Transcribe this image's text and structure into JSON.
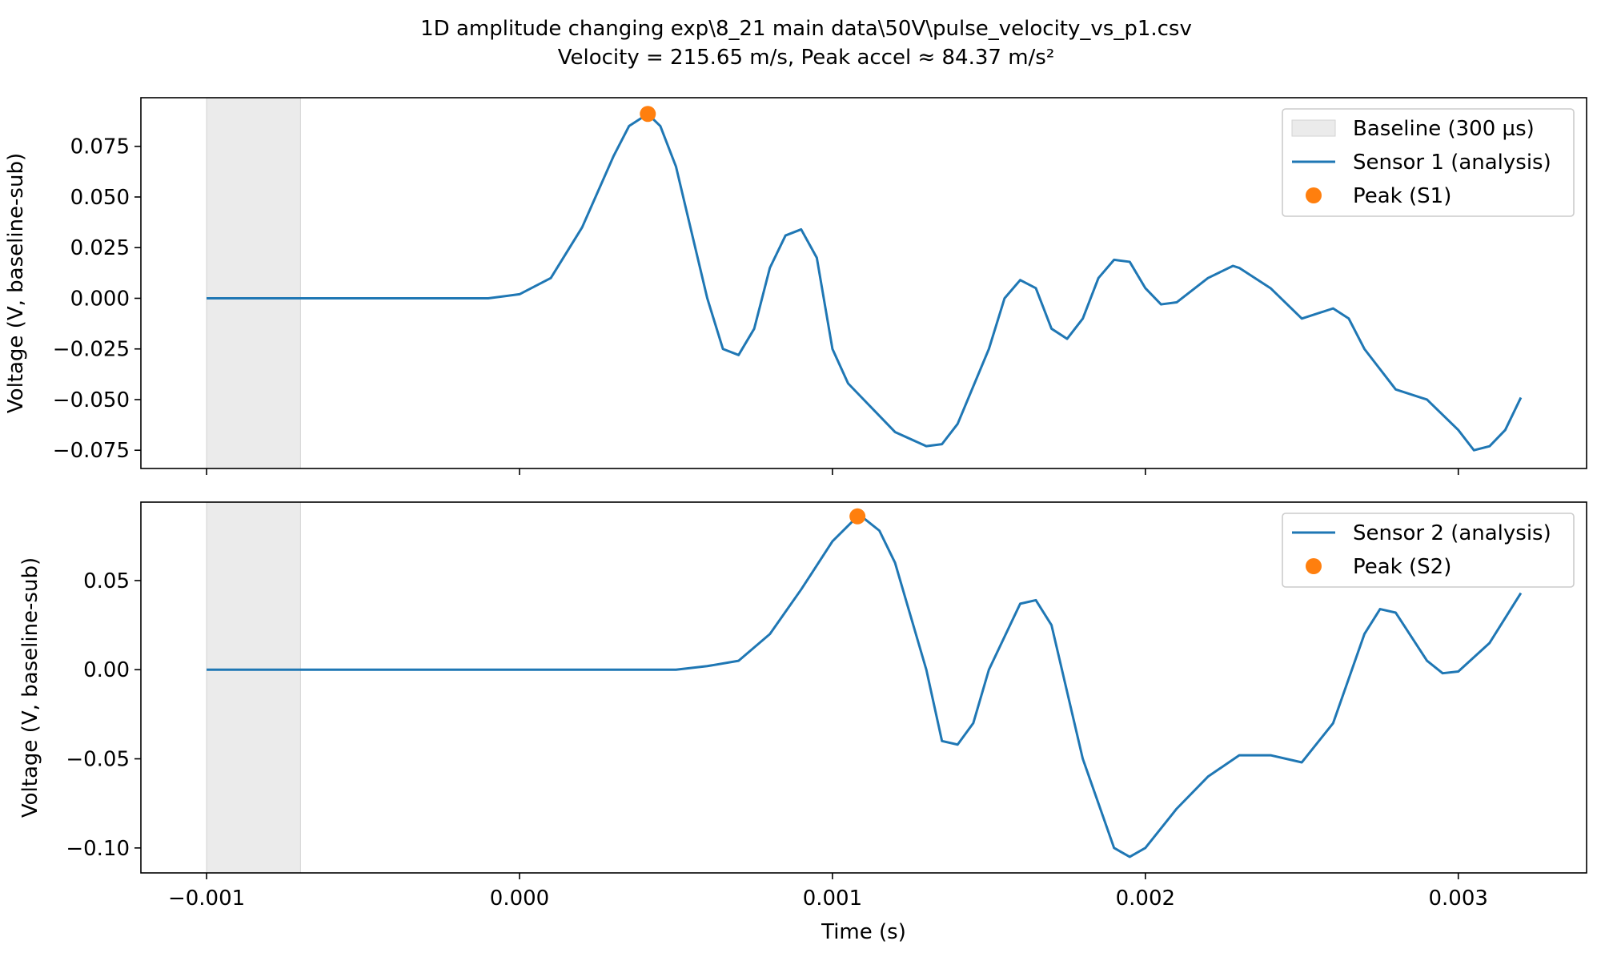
{
  "title_line1": "1D amplitude changing exp\\8_21 main data\\50V\\pulse_velocity_vs_p1.csv",
  "title_line2": "Velocity = 215.65 m/s, Peak accel ≈ 84.37 m/s²",
  "colors": {
    "series": "#1f77b4",
    "peak": "#ff7f0e",
    "baseline": "#d3d3d3"
  },
  "chart_data": [
    {
      "type": "line",
      "ylabel": "Voltage (V, baseline-sub)",
      "xlabel": "",
      "xlim": [
        -0.00121,
        0.00341
      ],
      "ylim": [
        -0.084,
        0.099
      ],
      "yticks": [
        -0.075,
        -0.05,
        -0.025,
        0.0,
        0.025,
        0.05,
        0.075
      ],
      "ytick_labels": [
        "−0.075",
        "−0.050",
        "−0.025",
        "0.000",
        "0.025",
        "0.050",
        "0.075"
      ],
      "xticks": [
        -0.001,
        0.0,
        0.001,
        0.002,
        0.003
      ],
      "baseline_band": {
        "x0": -0.001,
        "x1": -0.0007,
        "label": "Baseline (300 µs)"
      },
      "series": [
        {
          "name": "Sensor 1 (analysis)",
          "x": [
            -0.001,
            -0.0007,
            -0.0004,
            -0.0001,
            0.0,
            0.0001,
            0.0002,
            0.0003,
            0.00035,
            0.00041,
            0.00045,
            0.0005,
            0.0006,
            0.00065,
            0.0007,
            0.00075,
            0.0008,
            0.00085,
            0.0009,
            0.00095,
            0.001,
            0.00105,
            0.0011,
            0.0012,
            0.0013,
            0.00135,
            0.0014,
            0.0015,
            0.00155,
            0.0016,
            0.00165,
            0.0017,
            0.00175,
            0.0018,
            0.00185,
            0.0019,
            0.00195,
            0.002,
            0.00205,
            0.0021,
            0.0022,
            0.00228,
            0.0023,
            0.0024,
            0.0025,
            0.0026,
            0.00265,
            0.0027,
            0.0028,
            0.0029,
            0.003,
            0.00305,
            0.0031,
            0.00315,
            0.0032
          ],
          "y": [
            0.0,
            0.0,
            0.0,
            0.0,
            0.002,
            0.01,
            0.035,
            0.07,
            0.085,
            0.091,
            0.085,
            0.065,
            0.0,
            -0.025,
            -0.028,
            -0.015,
            0.015,
            0.031,
            0.034,
            0.02,
            -0.025,
            -0.042,
            -0.05,
            -0.066,
            -0.073,
            -0.072,
            -0.062,
            -0.025,
            0.0,
            0.009,
            0.005,
            -0.015,
            -0.02,
            -0.01,
            0.01,
            0.019,
            0.018,
            0.005,
            -0.003,
            -0.002,
            0.01,
            0.016,
            0.015,
            0.005,
            -0.01,
            -0.005,
            -0.01,
            -0.025,
            -0.045,
            -0.05,
            -0.065,
            -0.075,
            -0.073,
            -0.065,
            -0.049
          ]
        }
      ],
      "peak": {
        "x": 0.00041,
        "y": 0.091,
        "name": "Peak (S1)"
      }
    },
    {
      "type": "line",
      "ylabel": "Voltage (V, baseline-sub)",
      "xlabel": "Time (s)",
      "xlim": [
        -0.00121,
        0.00341
      ],
      "ylim": [
        -0.114,
        0.094
      ],
      "yticks": [
        -0.1,
        -0.05,
        0.0,
        0.05
      ],
      "ytick_labels": [
        "−0.10",
        "−0.05",
        "0.00",
        "0.05"
      ],
      "xticks": [
        -0.001,
        0.0,
        0.001,
        0.002,
        0.003
      ],
      "xtick_labels": [
        "−0.001",
        "0.000",
        "0.001",
        "0.002",
        "0.003"
      ],
      "baseline_band": {
        "x0": -0.001,
        "x1": -0.0007
      },
      "series": [
        {
          "name": "Sensor 2 (analysis)",
          "x": [
            -0.001,
            -0.0007,
            -0.0004,
            -0.0001,
            0.0,
            0.0003,
            0.0005,
            0.0006,
            0.0007,
            0.0008,
            0.0009,
            0.001,
            0.00108,
            0.0011,
            0.00115,
            0.0012,
            0.0013,
            0.00135,
            0.0014,
            0.00145,
            0.0015,
            0.0016,
            0.00165,
            0.0017,
            0.0018,
            0.0019,
            0.00195,
            0.002,
            0.0021,
            0.0022,
            0.0023,
            0.0024,
            0.0025,
            0.0026,
            0.0027,
            0.00275,
            0.0028,
            0.0029,
            0.00295,
            0.003,
            0.0031,
            0.0032
          ],
          "y": [
            0.0,
            0.0,
            0.0,
            0.0,
            0.0,
            0.0,
            0.0,
            0.002,
            0.005,
            0.02,
            0.045,
            0.072,
            0.086,
            0.085,
            0.078,
            0.06,
            0.0,
            -0.04,
            -0.042,
            -0.03,
            0.0,
            0.037,
            0.039,
            0.025,
            -0.05,
            -0.1,
            -0.105,
            -0.1,
            -0.078,
            -0.06,
            -0.048,
            -0.048,
            -0.052,
            -0.03,
            0.02,
            0.034,
            0.032,
            0.005,
            -0.002,
            -0.001,
            0.015,
            0.043
          ]
        }
      ],
      "peak": {
        "x": 0.00108,
        "y": 0.086,
        "name": "Peak (S2)"
      }
    }
  ]
}
